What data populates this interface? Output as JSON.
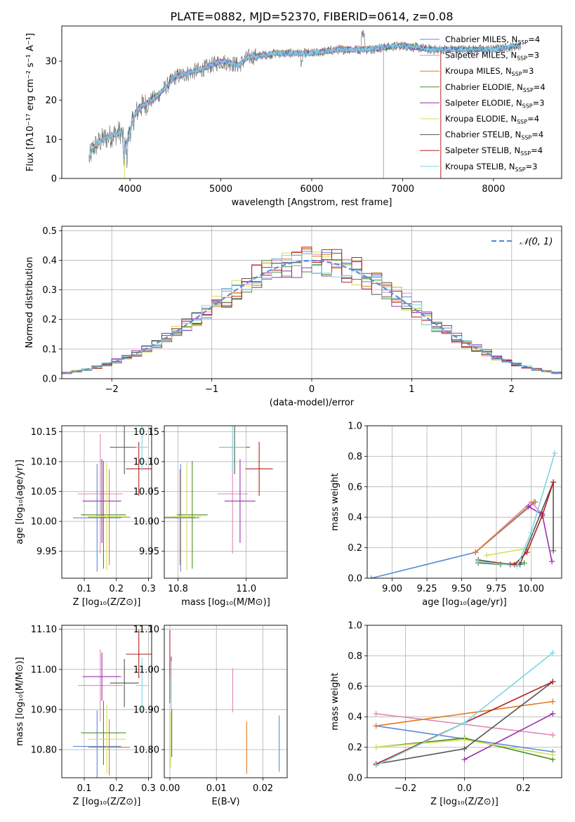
{
  "figure": {
    "title": "PLATE=0882, MJD=52370, FIBERID=0614, z=0.08"
  },
  "colors": {
    "chabrier_miles": "#5b8bd9",
    "salpeter_miles": "#e08ab8",
    "kroupa_miles": "#e07a20",
    "chabrier_elodie": "#4a8a2a",
    "salpeter_elodie": "#9b2fae",
    "kroupa_elodie": "#d4e054",
    "chabrier_stelib": "#555555",
    "salpeter_stelib": "#b22222",
    "kroupa_stelib": "#7dd7e0",
    "gaussian": "#5b8bd9"
  },
  "chart_data": [
    {
      "id": "spectrum",
      "type": "line",
      "xlabel": "wavelength [Angstrom, rest frame]",
      "ylabel": "Flux [fλ10⁻¹⁷ erg cm⁻² s⁻¹ A⁻¹]",
      "xlim": [
        3250,
        8750
      ],
      "ylim": [
        0,
        39
      ],
      "xticks": [
        4000,
        5000,
        6000,
        7000,
        8000
      ],
      "yticks": [
        0,
        10,
        20,
        30
      ],
      "legend_position": "right",
      "legend": [
        {
          "label": "Chabrier MILES, N",
          "sub": "SSP",
          "suffix": "=4",
          "color": "chabrier_miles"
        },
        {
          "label": "Salpeter MILES, N",
          "sub": "SSP",
          "suffix": "=3",
          "color": "salpeter_miles"
        },
        {
          "label": "Kroupa MILES, N",
          "sub": "SSP",
          "suffix": "=3",
          "color": "kroupa_miles"
        },
        {
          "label": "Chabrier ELODIE, N",
          "sub": "SSP",
          "suffix": "=4",
          "color": "chabrier_elodie"
        },
        {
          "label": "Salpeter ELODIE, N",
          "sub": "SSP",
          "suffix": "=3",
          "color": "salpeter_elodie"
        },
        {
          "label": "Kroupa ELODIE, N",
          "sub": "SSP",
          "suffix": "=4",
          "color": "kroupa_elodie"
        },
        {
          "label": "Chabrier STELIB, N",
          "sub": "SSP",
          "suffix": "=4",
          "color": "chabrier_stelib"
        },
        {
          "label": "Salpeter STELIB, N",
          "sub": "SSP",
          "suffix": "=4",
          "color": "salpeter_stelib"
        },
        {
          "label": "Kroupa STELIB, N",
          "sub": "SSP",
          "suffix": "=3",
          "color": "kroupa_stelib"
        }
      ],
      "continuum": [
        [
          3550,
          5
        ],
        [
          3600,
          8
        ],
        [
          3700,
          10
        ],
        [
          3800,
          11
        ],
        [
          3900,
          12
        ],
        [
          3950,
          8
        ],
        [
          4050,
          16
        ],
        [
          4100,
          18
        ],
        [
          4300,
          21
        ],
        [
          4500,
          26
        ],
        [
          4800,
          28
        ],
        [
          5000,
          30
        ],
        [
          5200,
          29
        ],
        [
          5300,
          31
        ],
        [
          5600,
          32
        ],
        [
          6000,
          32
        ],
        [
          6300,
          33
        ],
        [
          6600,
          33
        ],
        [
          7000,
          34
        ],
        [
          7300,
          33
        ],
        [
          7600,
          33
        ],
        [
          8000,
          33
        ],
        [
          8300,
          34
        ]
      ],
      "model_cutoffs": [
        {
          "series": "kroupa_elodie",
          "x": 3940
        },
        {
          "series": "salpeter_miles",
          "x": 6790
        },
        {
          "series": "kroupa_elodie",
          "x": 7250
        },
        {
          "series": "salpeter_stelib",
          "x": 7420
        }
      ]
    },
    {
      "id": "residuals",
      "type": "bar",
      "xlabel": "(data-model)/error",
      "ylabel": "Normed distribution",
      "xlim": [
        -2.5,
        2.5
      ],
      "ylim": [
        0,
        0.515
      ],
      "xticks": [
        -2,
        -1,
        0,
        1,
        2
      ],
      "yticks": [
        0.0,
        0.1,
        0.2,
        0.3,
        0.4,
        0.5
      ],
      "grid": true,
      "legend_position": "top-right",
      "legend_label": "𝒩(0, 1)",
      "bin_width": 0.1
    },
    {
      "id": "age_vs_Z",
      "type": "scatter",
      "xlabel": "Z [log₁₀(Z/Z⊙)]",
      "ylabel": "age  [log₁₀(age/yr)]",
      "xlim": [
        0.03,
        0.31
      ],
      "ylim": [
        9.905,
        10.16
      ],
      "xticks": [
        0.1,
        0.2,
        0.3
      ],
      "yticks": [
        9.95,
        10.0,
        10.05,
        10.1,
        10.15
      ],
      "grid": true
    },
    {
      "id": "age_vs_mass",
      "type": "scatter",
      "xlabel": "mass [log₁₀(M/M⊙)]",
      "ylabel": "",
      "xlim": [
        10.76,
        11.12
      ],
      "ylim": [
        9.905,
        10.16
      ],
      "xticks": [
        10.8,
        11.0
      ],
      "yticks": [
        9.95,
        10.0,
        10.05,
        10.1,
        10.15
      ],
      "grid": true
    },
    {
      "id": "weight_vs_age",
      "type": "line",
      "xlabel": "age  [log₁₀(age/yr)]",
      "ylabel": "mass weight",
      "xlim": [
        8.82,
        10.22
      ],
      "ylim": [
        0,
        1
      ],
      "xticks": [
        9.0,
        9.25,
        9.5,
        9.75,
        10.0
      ],
      "yticks": [
        0.0,
        0.2,
        0.4,
        0.6,
        0.8,
        1.0
      ],
      "grid": true
    },
    {
      "id": "mass_vs_Z",
      "type": "scatter",
      "xlabel": "Z [log₁₀(Z/Z⊙)]",
      "ylabel": "mass [log₁₀(M/M⊙)]",
      "xlim": [
        0.03,
        0.31
      ],
      "ylim": [
        10.73,
        11.11
      ],
      "xticks": [
        0.1,
        0.2,
        0.3
      ],
      "yticks": [
        10.8,
        10.9,
        11.0,
        11.1
      ],
      "grid": true
    },
    {
      "id": "mass_vs_ebv",
      "type": "scatter",
      "xlabel": "E(B-V)",
      "ylabel": "",
      "xlim": [
        -0.0012,
        0.0252
      ],
      "ylim": [
        10.73,
        11.11
      ],
      "xticks": [
        0.0,
        0.01,
        0.02
      ],
      "yticks": [
        10.8,
        10.9,
        11.0,
        11.1
      ],
      "grid": true
    },
    {
      "id": "weight_vs_Z",
      "type": "line",
      "xlabel": "Z [log₁₀(Z/Z⊙)]",
      "ylabel": "mass weight",
      "xlim": [
        -0.33,
        0.33
      ],
      "ylim": [
        0,
        1
      ],
      "xticks": [
        -0.2,
        0.0,
        0.2
      ],
      "yticks": [
        0.0,
        0.2,
        0.4,
        0.6,
        0.8,
        1.0
      ],
      "grid": true
    }
  ],
  "models": [
    {
      "key": "chabrier_miles",
      "hist_jitter": 0.6,
      "Z": 0.14,
      "Zerr": 0.075,
      "age": 10.006,
      "ageErr": 0.09,
      "mass": 10.808,
      "massErr": 0.055,
      "massVerr": 0.09,
      "ebv": 0.0235,
      "ebvMass": 10.815,
      "ebvErr": 0.07,
      "ageW": [
        [
          8.85,
          0.0
        ],
        [
          9.6,
          0.17
        ],
        [
          10.03,
          0.5
        ]
      ],
      "zW": [
        [
          -0.3,
          0.34
        ],
        [
          0.3,
          0.17
        ]
      ]
    },
    {
      "key": "salpeter_miles",
      "hist_jitter": 0.9,
      "Z": 0.15,
      "Zerr": 0.07,
      "age": 10.046,
      "ageErr": 0.1,
      "mass": 10.96,
      "massErr": 0.045,
      "massVerr": 0.09,
      "ebv": 0.0135,
      "ebvMass": 10.948,
      "ebvErr": 0.055,
      "ageW": [
        [
          9.6,
          0.17
        ],
        [
          10.0,
          0.5
        ],
        [
          10.08,
          0.42
        ]
      ],
      "zW": [
        [
          -0.3,
          0.42
        ],
        [
          0.3,
          0.28
        ]
      ]
    },
    {
      "key": "kroupa_miles",
      "hist_jitter": 0.4,
      "Z": 0.178,
      "Zerr": 0.065,
      "age": 10.007,
      "ageErr": 0.08,
      "mass": 10.806,
      "massErr": 0.045,
      "massVerr": 0.07,
      "ebv": 0.0165,
      "ebvMass": 10.805,
      "ebvErr": 0.065,
      "ageW": [
        [
          9.6,
          0.17
        ],
        [
          10.02,
          0.5
        ]
      ],
      "zW": [
        [
          -0.3,
          0.34
        ],
        [
          0.3,
          0.5
        ]
      ]
    },
    {
      "key": "chabrier_elodie",
      "hist_jitter": 0.7,
      "Z": 0.16,
      "Zerr": 0.07,
      "age": 10.011,
      "ageErr": 0.09,
      "mass": 10.842,
      "massErr": 0.045,
      "massVerr": 0.08,
      "ebv": 0.0004,
      "ebvMass": 10.842,
      "ebvErr": 0.06,
      "ageW": [
        [
          9.62,
          0.1
        ],
        [
          9.78,
          0.09
        ],
        [
          9.95,
          0.1
        ]
      ],
      "zW": [
        [
          -0.3,
          0.2
        ],
        [
          0.0,
          0.26
        ],
        [
          0.3,
          0.12
        ]
      ]
    },
    {
      "key": "salpeter_elodie",
      "hist_jitter": 0.8,
      "Z": 0.155,
      "Zerr": 0.06,
      "age": 10.034,
      "ageErr": 0.07,
      "mass": 10.982,
      "massErr": 0.045,
      "massVerr": 0.06,
      "ebv": 0.0003,
      "ebvMass": 10.982,
      "ebvErr": 0.05,
      "ageW": [
        [
          9.98,
          0.47
        ],
        [
          10.08,
          0.42
        ],
        [
          10.15,
          0.11
        ]
      ],
      "zW": [
        [
          0.0,
          0.12
        ],
        [
          0.3,
          0.42
        ]
      ]
    },
    {
      "key": "kroupa_elodie",
      "hist_jitter": 0.5,
      "Z": 0.17,
      "Zerr": 0.06,
      "age": 10.008,
      "ageErr": 0.09,
      "mass": 10.826,
      "massErr": 0.045,
      "massVerr": 0.085,
      "ebv": 0.0002,
      "ebvMass": 10.826,
      "ebvErr": 0.07,
      "ageW": [
        [
          9.68,
          0.15
        ],
        [
          10.0,
          0.2
        ]
      ],
      "zW": [
        [
          -0.3,
          0.2
        ],
        [
          0.0,
          0.25
        ],
        [
          0.3,
          0.15
        ]
      ]
    },
    {
      "key": "chabrier_stelib",
      "hist_jitter": 0.3,
      "Z": 0.225,
      "Zerr": 0.045,
      "age": 10.124,
      "ageErr": 0.045,
      "mass": 10.966,
      "massErr": 0.045,
      "massVerr": 0.06,
      "ebv": 0.0,
      "ebvMass": 10.966,
      "ebvErr": 0.05,
      "ageW": [
        [
          9.62,
          0.12
        ],
        [
          9.85,
          0.09
        ],
        [
          9.92,
          0.09
        ],
        [
          10.16,
          0.63
        ],
        [
          10.16,
          0.18
        ]
      ],
      "zW": [
        [
          -0.3,
          0.09
        ],
        [
          0.0,
          0.19
        ],
        [
          0.3,
          0.63
        ]
      ]
    },
    {
      "key": "salpeter_stelib",
      "hist_jitter": 1.0,
      "Z": 0.27,
      "Zerr": 0.04,
      "age": 10.088,
      "ageErr": 0.045,
      "mass": 11.038,
      "massErr": 0.04,
      "massVerr": 0.06,
      "ebv": 0.0,
      "ebvMass": 11.038,
      "ebvErr": 0.06,
      "ageW": [
        [
          9.62,
          0.11
        ],
        [
          9.88,
          0.09
        ],
        [
          9.97,
          0.17
        ],
        [
          10.08,
          0.41
        ],
        [
          10.16,
          0.63
        ]
      ],
      "zW": [
        [
          -0.3,
          0.09
        ],
        [
          0.3,
          0.63
        ]
      ]
    },
    {
      "key": "kroupa_stelib",
      "hist_jitter": 0.2,
      "Z": 0.28,
      "Zerr": 0.02,
      "age": 10.124,
      "ageErr": 0.04,
      "mass": 10.96,
      "massErr": 0.04,
      "massVerr": 0.07,
      "ebv": 0.0003,
      "ebvMass": 10.96,
      "ebvErr": 0.06,
      "ageW": [
        [
          9.62,
          0.11
        ],
        [
          9.9,
          0.08
        ],
        [
          10.0,
          0.3
        ],
        [
          10.17,
          0.82
        ]
      ],
      "zW": [
        [
          -0.3,
          0.08
        ],
        [
          0.0,
          0.36
        ],
        [
          0.3,
          0.82
        ]
      ]
    }
  ]
}
